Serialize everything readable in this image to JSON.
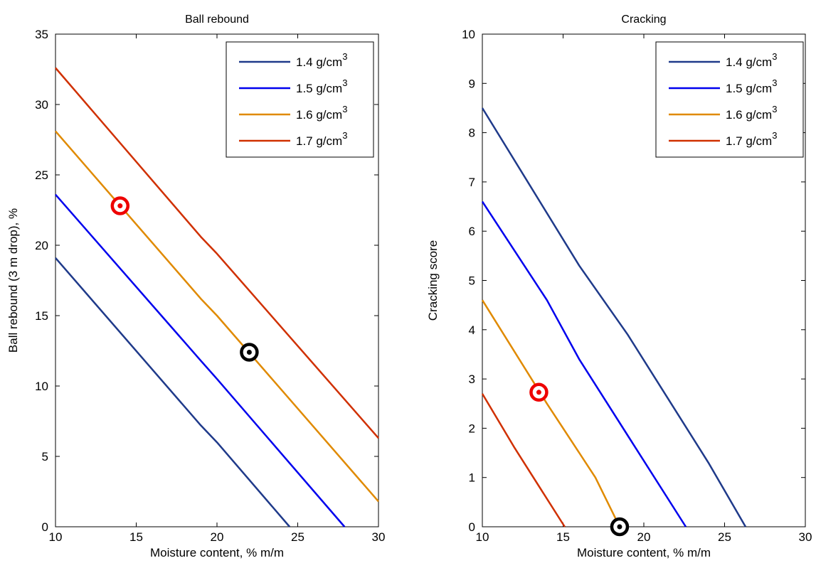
{
  "chart_data": [
    {
      "type": "line",
      "title": "Ball rebound",
      "xlabel": "Moisture content, % m/m",
      "ylabel": "Ball rebound (3 m drop), %",
      "xlim": [
        10,
        30
      ],
      "ylim": [
        0,
        35
      ],
      "xticks": [
        10,
        15,
        20,
        25,
        30
      ],
      "yticks": [
        0,
        5,
        10,
        15,
        20,
        25,
        30,
        35
      ],
      "grid": false,
      "legend_position": "top-right",
      "series": [
        {
          "name": "1.4 g/cm",
          "sup": "3",
          "color": "#1f3a8a",
          "x": [
            10,
            19,
            20,
            24.5
          ],
          "y": [
            19.1,
            7.2,
            6.0,
            0
          ]
        },
        {
          "name": "1.5 g/cm",
          "sup": "3",
          "color": "#0000ee",
          "x": [
            10,
            19,
            20,
            27.9
          ],
          "y": [
            23.6,
            11.8,
            10.5,
            0
          ]
        },
        {
          "name": "1.6 g/cm",
          "sup": "3",
          "color": "#e08a00",
          "x": [
            10,
            19,
            20,
            30
          ],
          "y": [
            28.1,
            16.2,
            15.0,
            1.8
          ]
        },
        {
          "name": "1.7 g/cm",
          "sup": "3",
          "color": "#d03000",
          "x": [
            10,
            19,
            20,
            30
          ],
          "y": [
            32.6,
            20.6,
            19.4,
            6.3
          ]
        }
      ],
      "markers": [
        {
          "x": 14,
          "y": 22.8,
          "color": "#ee0000"
        },
        {
          "x": 22,
          "y": 12.4,
          "color": "#000000"
        }
      ]
    },
    {
      "type": "line",
      "title": "Cracking",
      "xlabel": "Moisture content, % m/m",
      "ylabel": "Cracking score",
      "xlim": [
        10,
        30
      ],
      "ylim": [
        0,
        10
      ],
      "xticks": [
        10,
        15,
        20,
        25,
        30
      ],
      "yticks": [
        0,
        1,
        2,
        3,
        4,
        5,
        6,
        7,
        8,
        9,
        10
      ],
      "grid": false,
      "legend_position": "top-right",
      "series": [
        {
          "name": "1.4 g/cm",
          "sup": "3",
          "color": "#1f3a8a",
          "x": [
            10,
            16,
            19,
            24,
            26.3
          ],
          "y": [
            8.5,
            5.3,
            3.9,
            1.3,
            0
          ]
        },
        {
          "name": "1.5 g/cm",
          "sup": "3",
          "color": "#0000ee",
          "x": [
            10,
            14,
            16,
            22.6
          ],
          "y": [
            6.6,
            4.6,
            3.4,
            0
          ]
        },
        {
          "name": "1.6 g/cm",
          "sup": "3",
          "color": "#e08a00",
          "x": [
            10,
            14,
            16,
            17,
            18.5
          ],
          "y": [
            4.6,
            2.5,
            1.5,
            1.0,
            0
          ]
        },
        {
          "name": "1.7 g/cm",
          "sup": "3",
          "color": "#d03000",
          "x": [
            10,
            12,
            15.1
          ],
          "y": [
            2.7,
            1.6,
            0
          ]
        }
      ],
      "markers": [
        {
          "x": 13.5,
          "y": 2.73,
          "color": "#ee0000"
        },
        {
          "x": 18.5,
          "y": 0.0,
          "color": "#000000"
        }
      ]
    }
  ]
}
